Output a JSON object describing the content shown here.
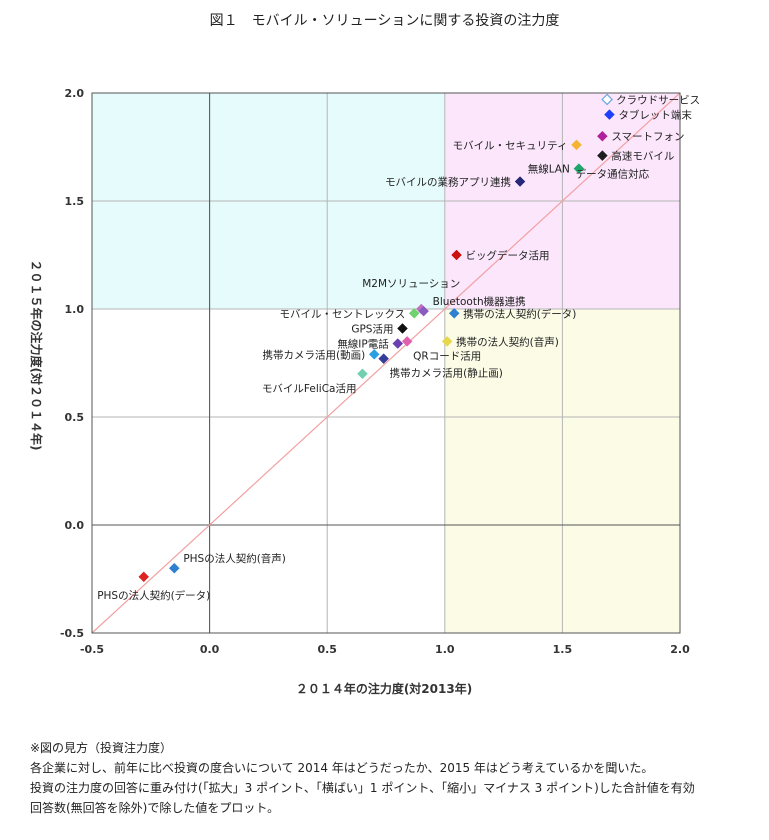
{
  "chart_data": {
    "type": "scatter",
    "title": "図１　モバイル・ソリューションに関する投資の注力度",
    "xlabel": "２０１４年の注力度(対2013年)",
    "ylabel": "２０１５年の注力度(対２０１４年)",
    "xlim": [
      -0.5,
      2.0
    ],
    "ylim": [
      -0.5,
      2.0
    ],
    "xticks": [
      "-0.5",
      "0.0",
      "0.5",
      "1.0",
      "1.5",
      "2.0"
    ],
    "yticks": [
      "-0.5",
      "0.0",
      "0.5",
      "1.0",
      "1.5",
      "2.0"
    ],
    "grid": true,
    "quadrants": [
      {
        "x": [
          -0.5,
          1.0
        ],
        "y": [
          1.0,
          2.0
        ],
        "color": "#e6fbfb"
      },
      {
        "x": [
          1.0,
          2.0
        ],
        "y": [
          1.0,
          2.0
        ],
        "color": "#fbe6fb"
      },
      {
        "x": [
          1.0,
          2.0
        ],
        "y": [
          -0.5,
          1.0
        ],
        "color": "#fbfbe6"
      }
    ],
    "diagonal": {
      "from": [
        -0.5,
        -0.5
      ],
      "to": [
        2.0,
        2.0
      ],
      "color": "#f2a0a0"
    },
    "points": [
      {
        "label": "クラウドサービス",
        "x": 1.69,
        "y": 1.97,
        "color": "#ffffff",
        "stroke": "#6fa8dc",
        "label_pos": "right"
      },
      {
        "label": "タブレット端末",
        "x": 1.7,
        "y": 1.9,
        "color": "#1f3fff",
        "label_pos": "right"
      },
      {
        "label": "スマートフォン",
        "x": 1.67,
        "y": 1.8,
        "color": "#b0209a",
        "label_pos": "right"
      },
      {
        "label": "モバイル・セキュリティ",
        "x": 1.56,
        "y": 1.76,
        "color": "#f4b431",
        "label_pos": "left"
      },
      {
        "label": "無線LAN",
        "x": 1.57,
        "y": 1.65,
        "color": "#1fa66b",
        "label_pos": "left"
      },
      {
        "label": "高速モバイル",
        "x": 1.67,
        "y": 1.71,
        "color": "#1e1e1e",
        "label_pos": "right"
      },
      {
        "label": "データ通信対応",
        "x": 1.67,
        "y": 1.71,
        "color": "#1e1e1e",
        "label_pos": "below"
      },
      {
        "label": "モバイルの業務アプリ連携",
        "x": 1.32,
        "y": 1.59,
        "color": "#28287a",
        "label_pos": "left"
      },
      {
        "label": "ビッグデータ活用",
        "x": 1.05,
        "y": 1.25,
        "color": "#cc1111",
        "label_pos": "right"
      },
      {
        "label": "M2Mソリューション",
        "x": 0.9,
        "y": 1.0,
        "color": "#c070c0",
        "label_pos": "above"
      },
      {
        "label": "Bluetooth機器連携",
        "x": 0.91,
        "y": 0.99,
        "color": "#8a5cc0",
        "label_pos": "right-above"
      },
      {
        "label": "モバイル・セントレックス",
        "x": 0.87,
        "y": 0.98,
        "color": "#6fd16f",
        "label_pos": "left"
      },
      {
        "label": "携帯の法人契約(データ)",
        "x": 1.04,
        "y": 0.98,
        "color": "#2f80d0",
        "label_pos": "right"
      },
      {
        "label": "GPS活用",
        "x": 0.82,
        "y": 0.91,
        "color": "#111111",
        "label_pos": "left"
      },
      {
        "label": "無線IP電話",
        "x": 0.8,
        "y": 0.84,
        "color": "#6a3fb0",
        "label_pos": "left"
      },
      {
        "label": "携帯の法人契約(音声)",
        "x": 1.01,
        "y": 0.85,
        "color": "#e6d84a",
        "label_pos": "right"
      },
      {
        "label": "携帯カメラ活用(動画)",
        "x": 0.7,
        "y": 0.79,
        "color": "#2aa0e0",
        "label_pos": "left"
      },
      {
        "label": "QRコード活用",
        "x": 0.84,
        "y": 0.85,
        "color": "#e060b0",
        "label_pos": "below-right"
      },
      {
        "label": "携帯カメラ活用(静止画)",
        "x": 0.74,
        "y": 0.77,
        "color": "#343d9a",
        "label_pos": "below-right"
      },
      {
        "label": "モバイルFeliCa活用",
        "x": 0.65,
        "y": 0.7,
        "color": "#70d0b0",
        "label_pos": "below-left"
      },
      {
        "label": "PHSの法人契約(音声)",
        "x": -0.15,
        "y": -0.2,
        "color": "#2f80d0",
        "label_pos": "right-above"
      },
      {
        "label": "PHSの法人契約(データ)",
        "x": -0.28,
        "y": -0.24,
        "color": "#dd2222",
        "label_pos": "below"
      }
    ]
  },
  "notes": {
    "heading": "※図の見方（投資注力度）",
    "line1": "各企業に対し、前年に比べ投資の度合いについて 2014 年はどうだったか、2015 年はどう考えているかを聞いた。",
    "line2": "投資の注力度の回答に重み付け(「拡大」3 ポイント、「横ばい」1 ポイント、「縮小」マイナス 3 ポイント)した合計値を有効",
    "line3": "回答数(無回答を除外)で除した値をプロット。"
  }
}
